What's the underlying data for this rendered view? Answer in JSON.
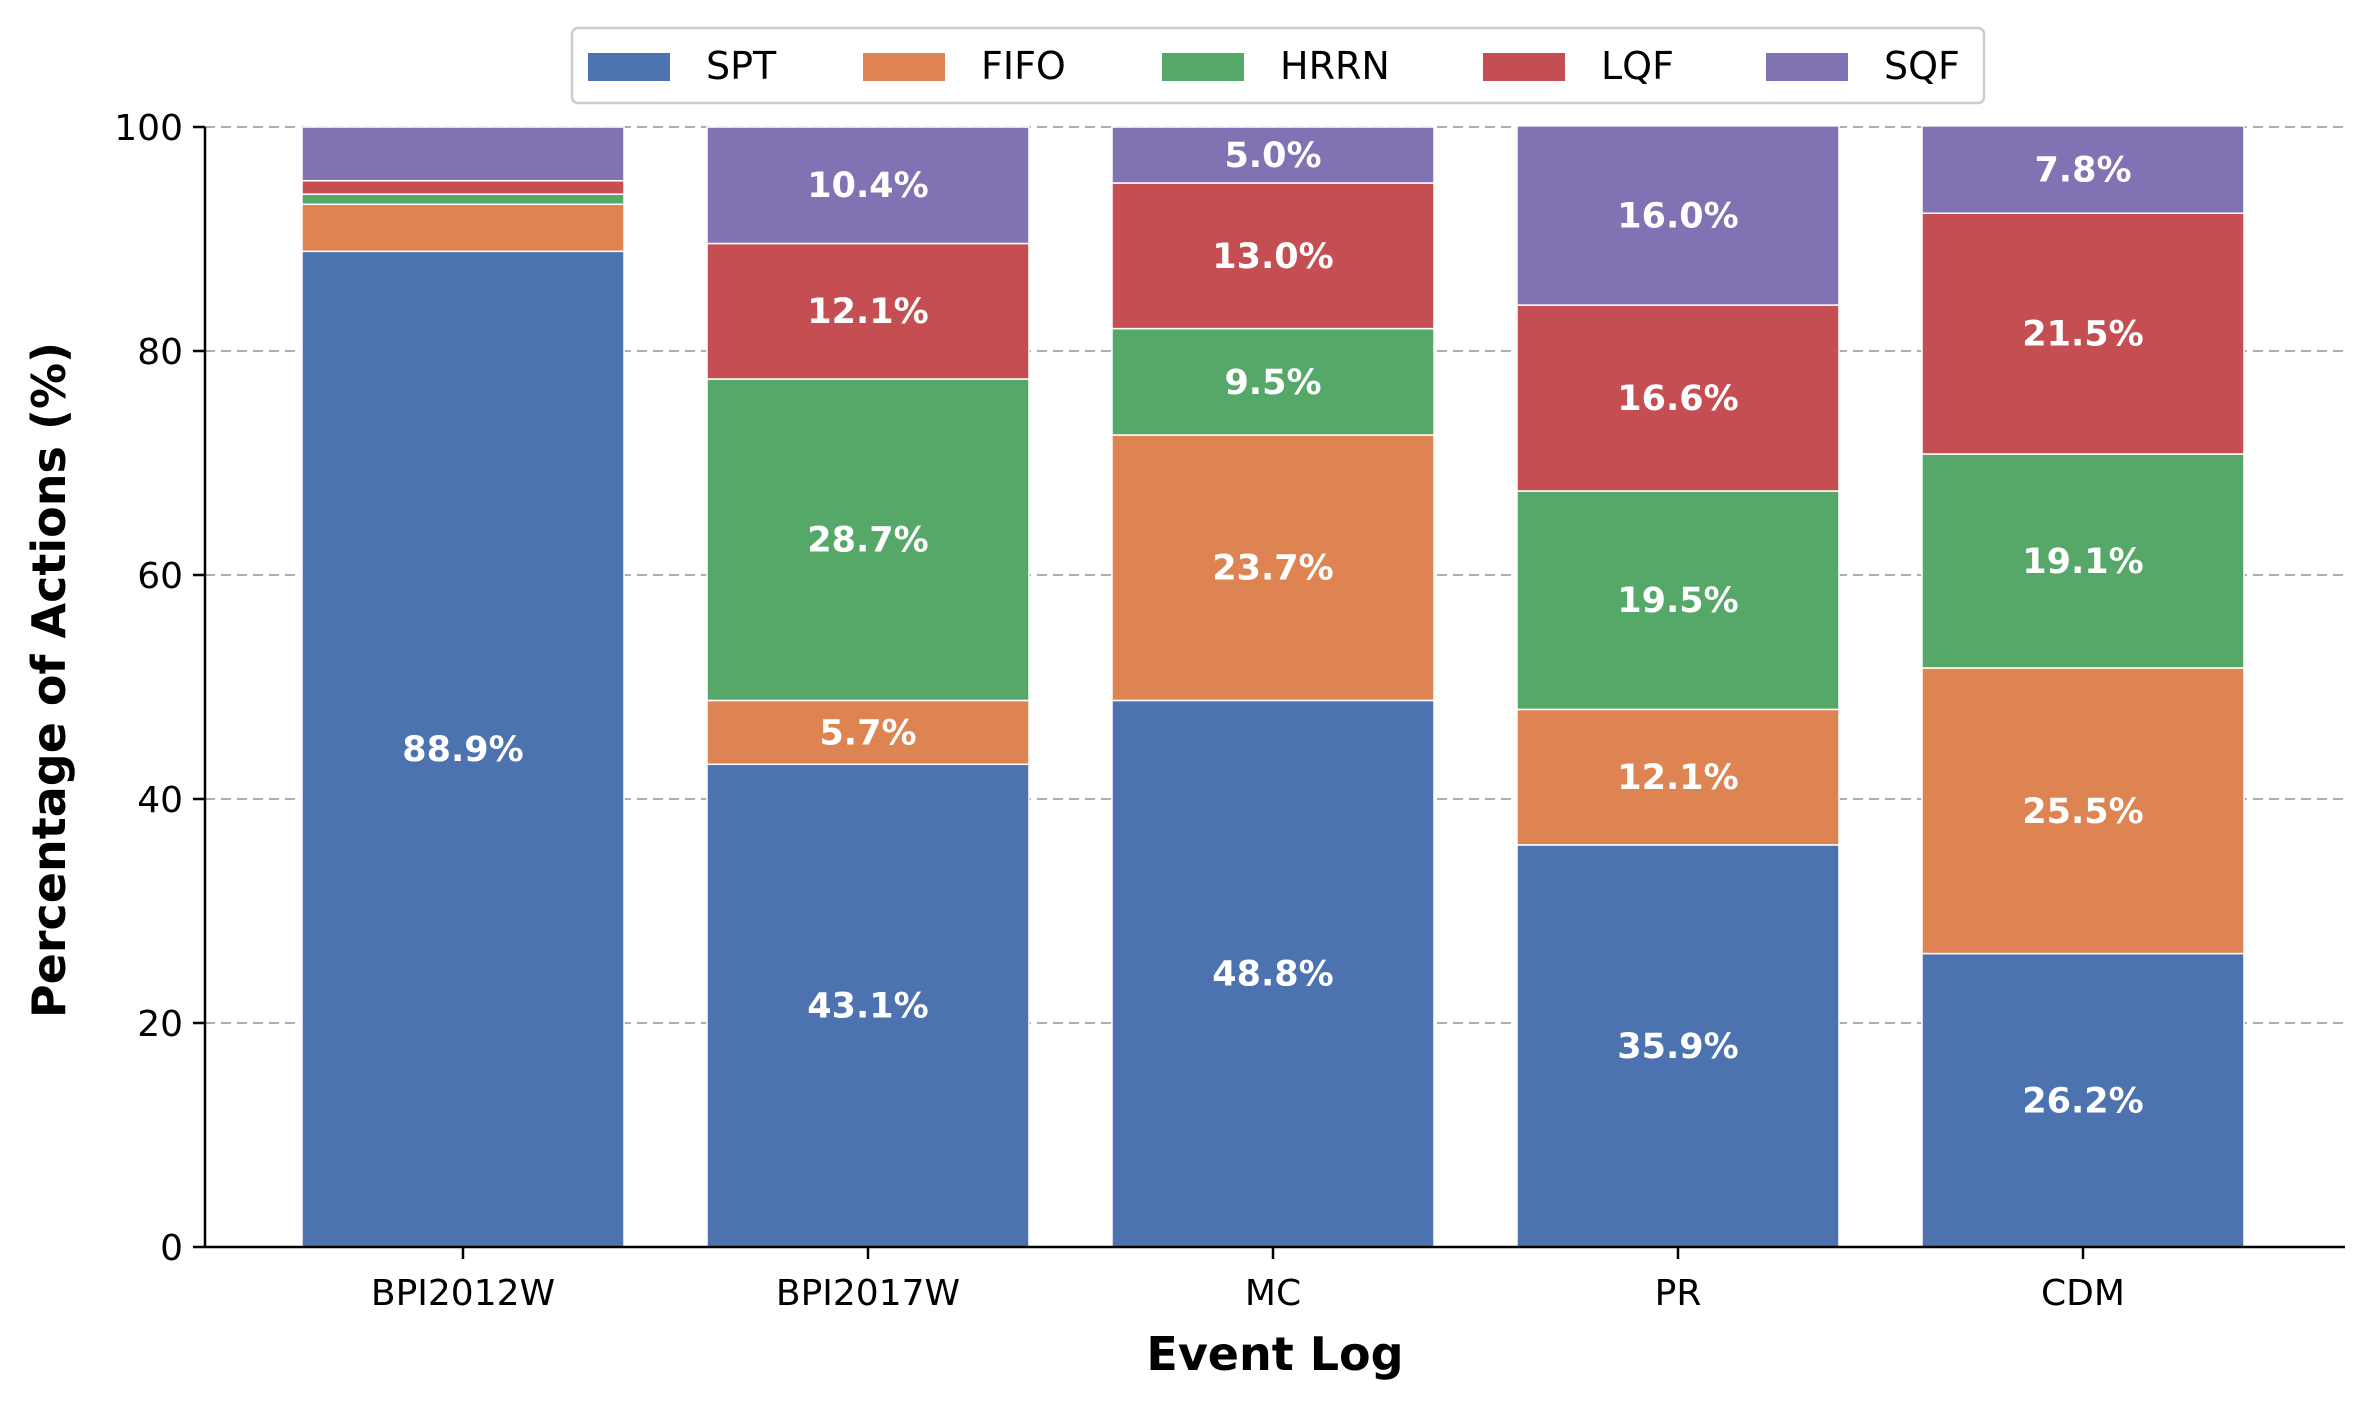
{
  "chart_data": {
    "type": "bar",
    "stacked": true,
    "title": "",
    "xlabel": "Event Log",
    "ylabel": "Percentage of Actions (%)",
    "ylim": [
      0,
      100
    ],
    "yticks": [
      0,
      20,
      40,
      60,
      80,
      100
    ],
    "grid": "y-dashed",
    "legend_position": "top-center",
    "categories": [
      "BPI2012W",
      "BPI2017W",
      "MC",
      "PR",
      "CDM"
    ],
    "series": [
      {
        "name": "SPT",
        "color": "#4c72b0",
        "values": [
          88.9,
          43.1,
          48.8,
          35.9,
          26.2
        ],
        "labels": [
          "88.9%",
          "43.1%",
          "48.8%",
          "35.9%",
          "26.2%"
        ]
      },
      {
        "name": "FIFO",
        "color": "#dd8452",
        "values": [
          4.2,
          5.7,
          23.7,
          12.1,
          25.5
        ],
        "labels": [
          "",
          "5.7%",
          "23.7%",
          "12.1%",
          "25.5%"
        ]
      },
      {
        "name": "HRRN",
        "color": "#55a868",
        "values": [
          0.9,
          28.7,
          9.5,
          19.5,
          19.1
        ],
        "labels": [
          "",
          "28.7%",
          "9.5%",
          "19.5%",
          "19.1%"
        ]
      },
      {
        "name": "LQF",
        "color": "#c44e52",
        "values": [
          1.2,
          12.1,
          13.0,
          16.6,
          21.5
        ],
        "labels": [
          "",
          "12.1%",
          "13.0%",
          "16.6%",
          "21.5%"
        ]
      },
      {
        "name": "SQF",
        "color": "#8172b3",
        "values": [
          4.8,
          10.4,
          5.0,
          16.0,
          7.8
        ],
        "labels": [
          "",
          "10.4%",
          "5.0%",
          "16.0%",
          "7.8%"
        ]
      }
    ]
  }
}
